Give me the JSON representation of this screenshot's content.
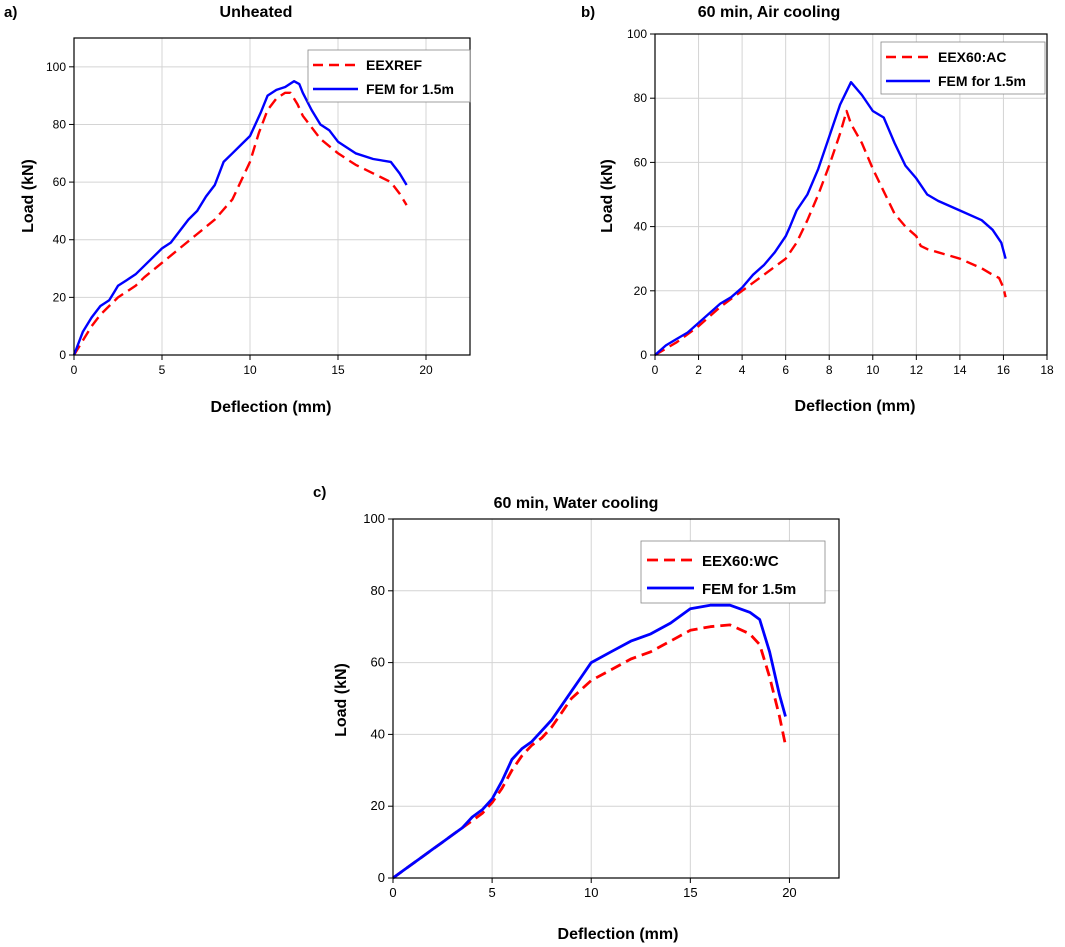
{
  "chart_data": [
    {
      "type": "line",
      "panel_label": "a)",
      "title": "Unheated",
      "xlabel": "Deflection (mm)",
      "ylabel": "Load (kN)",
      "xlim": [
        0,
        22.5
      ],
      "ylim": [
        0,
        110
      ],
      "xticks": [
        0,
        5,
        10,
        15,
        20
      ],
      "yticks": [
        0,
        20,
        40,
        60,
        80,
        100
      ],
      "grid": true,
      "legend_position": "top-right",
      "series": [
        {
          "name": "EEXREF",
          "style": "dashed",
          "color": "#ff0000",
          "x": [
            0,
            0.5,
            1.0,
            1.5,
            2.0,
            2.5,
            3.0,
            3.5,
            4.0,
            5.0,
            6.0,
            7.0,
            8.0,
            9.0,
            10.0,
            10.5,
            11.0,
            11.5,
            12.0,
            12.3,
            12.7,
            13.0,
            14.0,
            15.0,
            16.0,
            17.0,
            18.0,
            18.5,
            18.9
          ],
          "y": [
            0,
            5,
            10,
            14,
            17,
            20,
            22,
            24,
            27,
            32,
            37,
            42,
            47,
            54,
            67,
            77,
            85,
            89,
            91,
            91,
            87,
            83,
            75,
            70,
            66,
            63,
            60,
            56,
            52
          ]
        },
        {
          "name": "FEM for 1.5m",
          "style": "solid",
          "color": "#0000ff",
          "x": [
            0,
            0.5,
            1.0,
            1.5,
            2.0,
            2.3,
            2.5,
            3.0,
            3.5,
            4.0,
            5.0,
            5.5,
            6.0,
            6.5,
            7.0,
            7.5,
            8.0,
            8.5,
            9.0,
            9.5,
            10.0,
            10.3,
            10.6,
            11.0,
            11.5,
            12.0,
            12.5,
            12.8,
            13.0,
            13.5,
            14.0,
            14.5,
            15.0,
            16.0,
            17.0,
            18.0,
            18.5,
            18.9
          ],
          "y": [
            0,
            8,
            13,
            17,
            19,
            22,
            24,
            26,
            28,
            31,
            37,
            39,
            43,
            47,
            50,
            55,
            59,
            67,
            70,
            73,
            76,
            80,
            84,
            90,
            92,
            93,
            95,
            94,
            91,
            85,
            80,
            78,
            74,
            70,
            68,
            67,
            63,
            59
          ]
        }
      ]
    },
    {
      "type": "line",
      "panel_label": "b)",
      "title": "60 min, Air cooling",
      "xlabel": "Deflection (mm)",
      "ylabel": "Load (kN)",
      "xlim": [
        0,
        18
      ],
      "ylim": [
        0,
        100
      ],
      "xticks": [
        0,
        2,
        4,
        6,
        8,
        10,
        12,
        14,
        16,
        18
      ],
      "yticks": [
        0,
        20,
        40,
        60,
        80,
        100
      ],
      "grid": true,
      "legend_position": "top-right",
      "series": [
        {
          "name": "EEX60:AC",
          "style": "dashed",
          "color": "#ff0000",
          "x": [
            0,
            0.5,
            1.0,
            2.0,
            3.0,
            4.0,
            5.0,
            6.0,
            6.5,
            7.0,
            7.5,
            8.0,
            8.5,
            8.8,
            9.0,
            9.5,
            10.0,
            10.5,
            11.0,
            11.5,
            12.0,
            12.2,
            12.5,
            13.0,
            14.0,
            15.0,
            15.5,
            15.8,
            16.0,
            16.1
          ],
          "y": [
            0,
            2,
            4,
            9,
            15,
            20,
            25,
            30,
            35,
            42,
            50,
            59,
            69,
            76,
            72,
            66,
            58,
            51,
            44,
            40,
            37,
            34,
            33,
            32,
            30,
            27,
            25,
            24,
            21,
            18
          ]
        },
        {
          "name": "FEM for 1.5m",
          "style": "solid",
          "color": "#0000ff",
          "x": [
            0,
            0.5,
            1.0,
            1.5,
            2.0,
            3.0,
            3.5,
            4.0,
            4.5,
            5.0,
            5.5,
            6.0,
            6.2,
            6.5,
            7.0,
            7.5,
            8.0,
            8.5,
            9.0,
            9.5,
            10.0,
            10.5,
            11.0,
            11.5,
            12.0,
            12.5,
            13.0,
            14.0,
            15.0,
            15.5,
            15.9,
            16.1
          ],
          "y": [
            0,
            3,
            5,
            7,
            10,
            16,
            18,
            21,
            25,
            28,
            32,
            37,
            40,
            45,
            50,
            58,
            68,
            78,
            85,
            81,
            76,
            74,
            66,
            59,
            55,
            50,
            48,
            45,
            42,
            39,
            35,
            30
          ]
        }
      ]
    },
    {
      "type": "line",
      "panel_label": "c)",
      "title": "60 min, Water cooling",
      "xlabel": "Deflection (mm)",
      "ylabel": "Load (kN)",
      "xlim": [
        0,
        22.5
      ],
      "ylim": [
        0,
        100
      ],
      "xticks": [
        0,
        5,
        10,
        15,
        20
      ],
      "yticks": [
        0,
        20,
        40,
        60,
        80,
        100
      ],
      "grid": true,
      "legend_position": "top-right",
      "series": [
        {
          "name": "EEX60:WC",
          "style": "dashed",
          "color": "#ff0000",
          "x": [
            0,
            0.5,
            1.0,
            1.5,
            2.0,
            2.5,
            3.0,
            3.5,
            4.0,
            4.5,
            5.0,
            5.5,
            6.0,
            6.5,
            7.0,
            7.5,
            8.0,
            8.5,
            9.0,
            10.0,
            11.0,
            12.0,
            13.0,
            14.0,
            15.0,
            16.0,
            17.0,
            18.0,
            18.5,
            19.0,
            19.5,
            19.8
          ],
          "y": [
            0,
            2,
            4,
            6,
            8,
            10,
            12,
            14,
            16,
            18,
            21,
            25,
            30,
            34,
            37,
            39,
            42,
            46,
            50,
            55,
            58,
            61,
            63,
            66,
            69,
            70,
            70.5,
            68,
            65,
            56,
            45,
            37
          ]
        },
        {
          "name": "FEM for 1.5m",
          "style": "solid",
          "color": "#0000ff",
          "x": [
            0,
            0.5,
            1.0,
            1.5,
            2.0,
            2.5,
            3.0,
            3.5,
            4.0,
            4.5,
            5.0,
            5.5,
            6.0,
            6.5,
            7.0,
            7.5,
            8.0,
            8.5,
            9.0,
            9.5,
            10.0,
            11.0,
            12.0,
            13.0,
            14.0,
            15.0,
            16.0,
            17.0,
            18.0,
            18.5,
            19.0,
            19.5,
            19.8
          ],
          "y": [
            0,
            2,
            4,
            6,
            8,
            10,
            12,
            14,
            17,
            19,
            22,
            27,
            33,
            36,
            38,
            41,
            44,
            48,
            52,
            56,
            60,
            63,
            66,
            68,
            71,
            75,
            76,
            76,
            74,
            72,
            63,
            51,
            45
          ]
        }
      ]
    }
  ]
}
